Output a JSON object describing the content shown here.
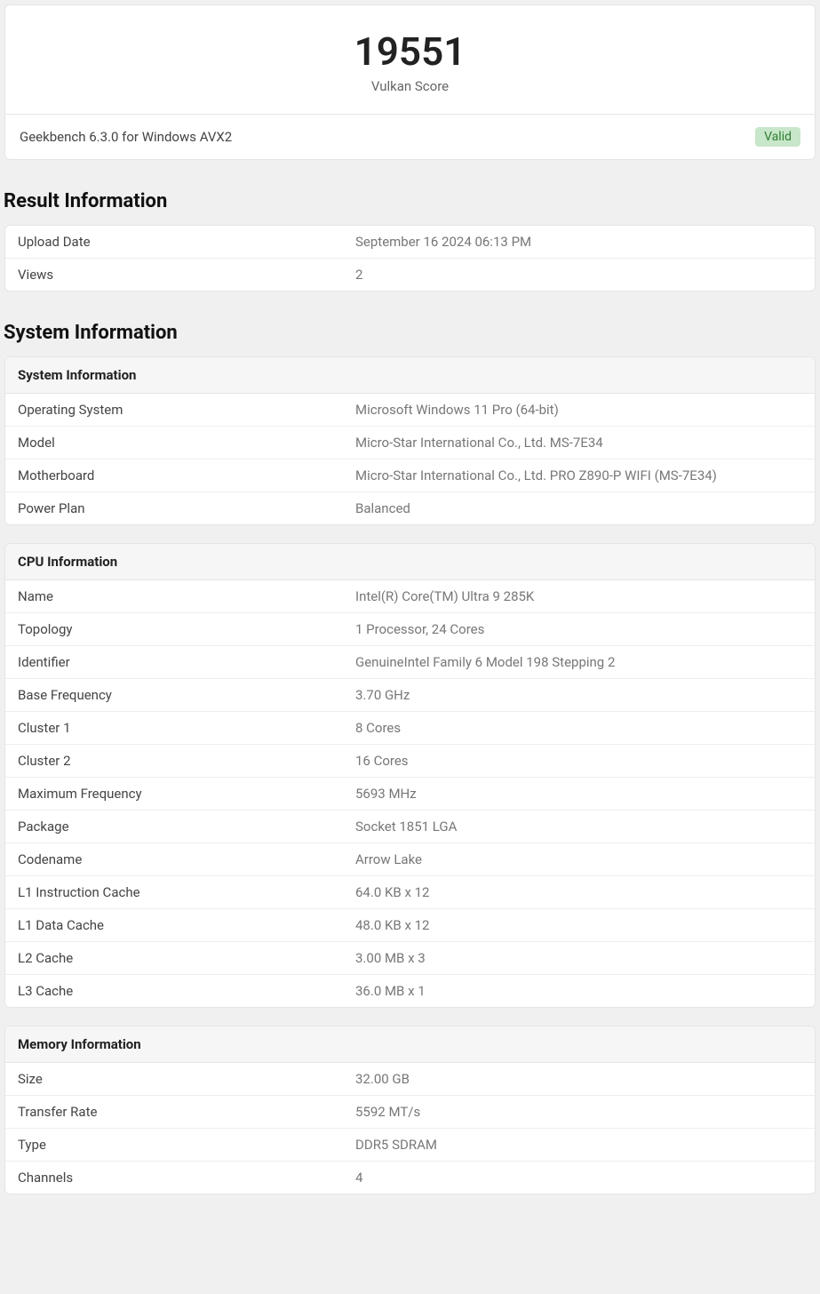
{
  "score": {
    "value": "19551",
    "label": "Vulkan Score",
    "version": "Geekbench 6.3.0 for Windows AVX2",
    "badge": "Valid",
    "badge_bg": "#c8e6c9",
    "badge_color": "#2e7d32"
  },
  "result_info": {
    "title": "Result Information",
    "rows": [
      {
        "key": "Upload Date",
        "val": "September 16 2024 06:13 PM"
      },
      {
        "key": "Views",
        "val": "2"
      }
    ]
  },
  "system_info_title": "System Information",
  "system": {
    "header": "System Information",
    "rows": [
      {
        "key": "Operating System",
        "val": "Microsoft Windows 11 Pro (64-bit)"
      },
      {
        "key": "Model",
        "val": "Micro-Star International Co., Ltd. MS-7E34"
      },
      {
        "key": "Motherboard",
        "val": "Micro-Star International Co., Ltd. PRO Z890-P WIFI (MS-7E34)"
      },
      {
        "key": "Power Plan",
        "val": "Balanced"
      }
    ]
  },
  "cpu": {
    "header": "CPU Information",
    "rows": [
      {
        "key": "Name",
        "val": "Intel(R) Core(TM) Ultra 9 285K"
      },
      {
        "key": "Topology",
        "val": "1 Processor, 24 Cores"
      },
      {
        "key": "Identifier",
        "val": "GenuineIntel Family 6 Model 198 Stepping 2"
      },
      {
        "key": "Base Frequency",
        "val": "3.70 GHz"
      },
      {
        "key": "Cluster 1",
        "val": "8 Cores"
      },
      {
        "key": "Cluster 2",
        "val": "16 Cores"
      },
      {
        "key": "Maximum Frequency",
        "val": "5693 MHz"
      },
      {
        "key": "Package",
        "val": "Socket 1851 LGA"
      },
      {
        "key": "Codename",
        "val": "Arrow Lake"
      },
      {
        "key": "L1 Instruction Cache",
        "val": "64.0 KB x 12"
      },
      {
        "key": "L1 Data Cache",
        "val": "48.0 KB x 12"
      },
      {
        "key": "L2 Cache",
        "val": "3.00 MB x 3"
      },
      {
        "key": "L3 Cache",
        "val": "36.0 MB x 1"
      }
    ]
  },
  "memory": {
    "header": "Memory Information",
    "rows": [
      {
        "key": "Size",
        "val": "32.00 GB"
      },
      {
        "key": "Transfer Rate",
        "val": "5592 MT/s"
      },
      {
        "key": "Type",
        "val": "DDR5 SDRAM"
      },
      {
        "key": "Channels",
        "val": "4"
      }
    ]
  },
  "colors": {
    "page_bg": "#f0f0f0",
    "card_bg": "#ffffff",
    "border": "#e5e5e5",
    "row_border": "#eeeeee",
    "header_bg": "#f6f6f6",
    "text_primary": "#444444",
    "text_secondary": "#777777",
    "text_heading": "#111111"
  }
}
